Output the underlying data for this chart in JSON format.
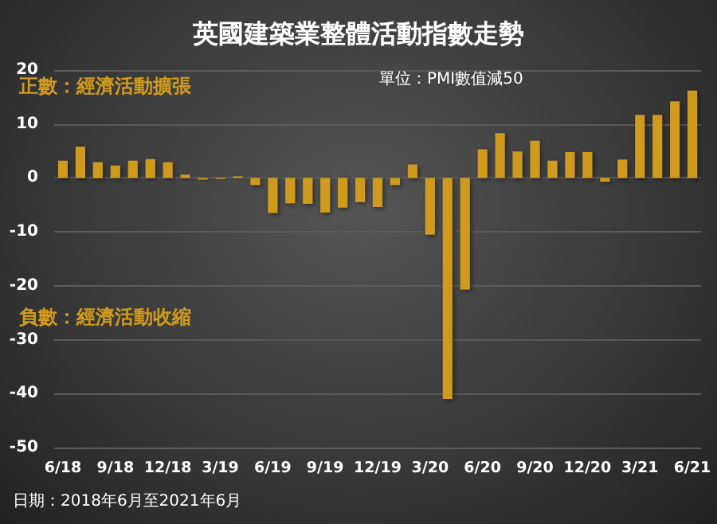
{
  "chart_data": {
    "type": "bar",
    "title": "英國建築業整體活動指數走勢",
    "categories": [
      "6/18",
      null,
      null,
      "9/18",
      null,
      null,
      "12/18",
      null,
      null,
      "3/19",
      null,
      null,
      "6/19",
      null,
      null,
      "9/19",
      null,
      null,
      "12/19",
      null,
      null,
      "3/20",
      null,
      null,
      "6/20",
      null,
      null,
      "9/20",
      null,
      null,
      "12/20",
      null,
      null,
      "3/21",
      null,
      null,
      "6/21"
    ],
    "values": [
      3.2,
      5.8,
      2.9,
      2.3,
      3.2,
      3.5,
      2.9,
      0.6,
      -0.3,
      -0.2,
      0.3,
      -1.3,
      -6.5,
      -4.7,
      -4.8,
      -6.4,
      -5.5,
      -4.5,
      -5.4,
      -1.3,
      2.5,
      -10.5,
      -41,
      -20.7,
      5.3,
      8.3,
      4.9,
      6.9,
      3.2,
      4.8,
      4.8,
      -0.7,
      3.4,
      11.7,
      11.7,
      14.2,
      16.2
    ],
    "color": "#d09a1c",
    "ylim": [
      -50,
      20
    ],
    "yticks": [
      -50,
      -40,
      -30,
      -20,
      -10,
      0,
      10,
      20
    ],
    "grid": "y",
    "annotations": [
      "正數：經濟活動擴張",
      "負數：經濟活動收縮",
      "單位：PMI數值減50",
      "日期：2018年6月至2021年6月"
    ]
  }
}
